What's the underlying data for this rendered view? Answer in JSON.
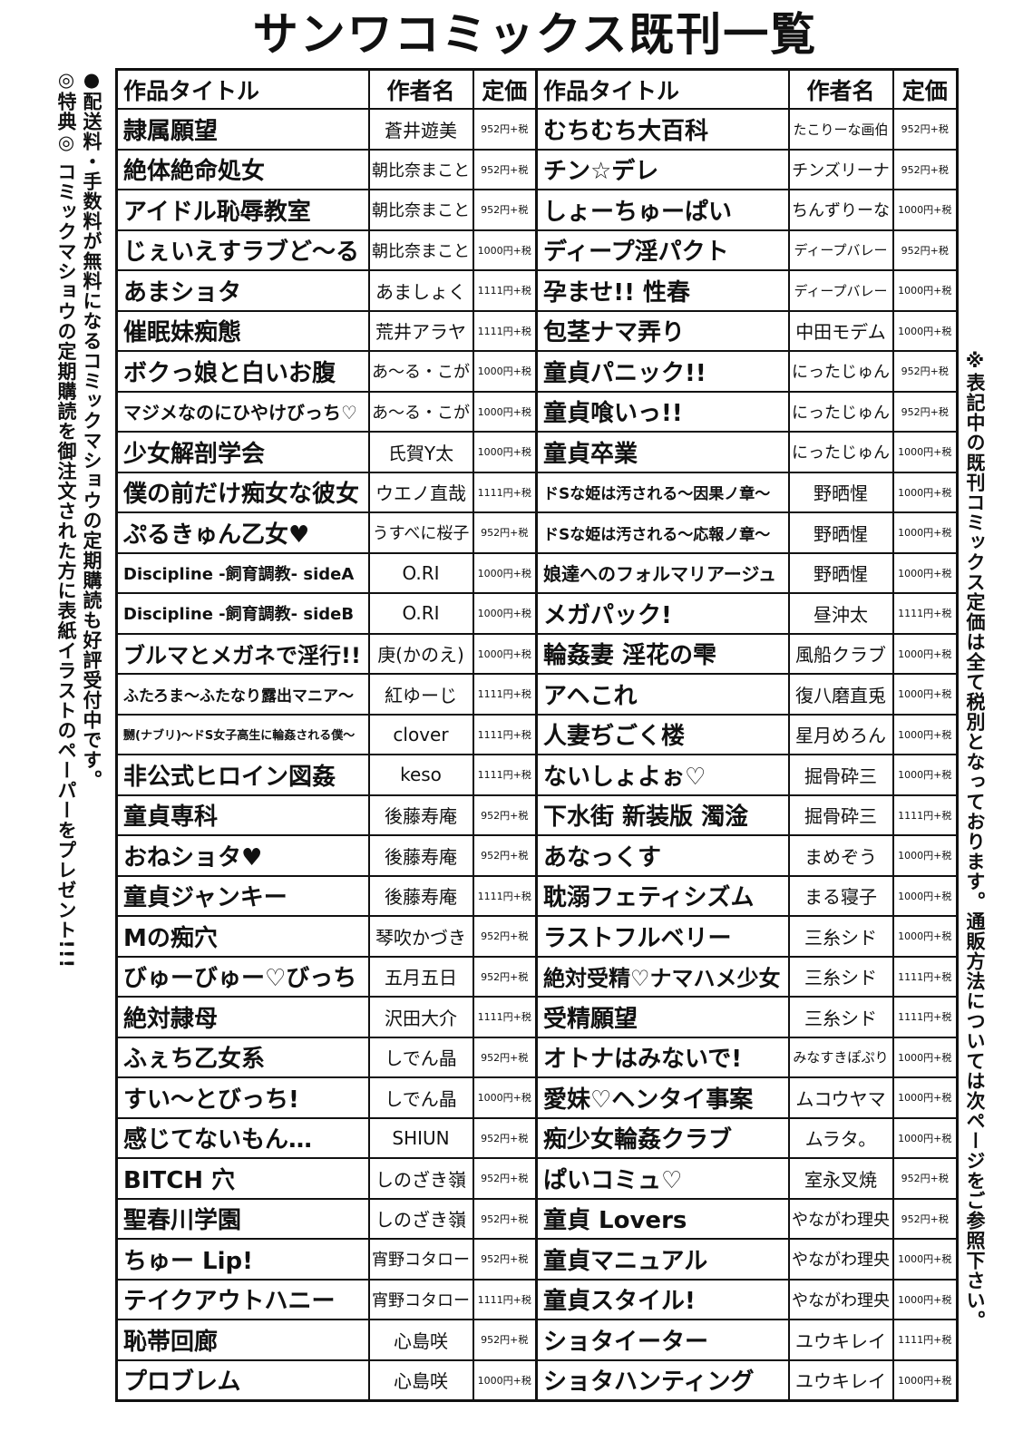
{
  "header": {
    "title": "サンワコミックス既刊一覧"
  },
  "notes": {
    "left1": "●配送料・手数料が無料になるコミックマショウの定期購読も好評受付中です。",
    "left2": "◎特典◎ コミックマショウの定期購読を御注文された方に表紙イラストのペーパーをプレゼント!!!",
    "right": "※表記中の既刊コミックス定価は全て税別となっております。通販方法については次ページをご参照下さい。"
  },
  "table": {
    "header": [
      "作品タイトル",
      "作者名",
      "定価",
      "作品タイトル",
      "作者名",
      "定価"
    ],
    "rows": [
      [
        "隷属願望",
        "蒼井遊美",
        "952円+税",
        "むちむち大百科",
        "たこりーな画伯",
        "952円+税"
      ],
      [
        "絶体絶命処女",
        "朝比奈まこと",
        "952円+税",
        "チン☆デレ",
        "チンズリーナ",
        "952円+税"
      ],
      [
        "アイドル恥辱教室",
        "朝比奈まこと",
        "952円+税",
        "しょーちゅーぱい",
        "ちんずりーな",
        "1000円+税"
      ],
      [
        "じぇいえすラブど〜る",
        "朝比奈まこと",
        "1000円+税",
        "ディープ淫パクト",
        "ディープバレー",
        "952円+税"
      ],
      [
        "あまショタ",
        "あましょく",
        "1111円+税",
        "孕ませ!! 性春",
        "ディープバレー",
        "1000円+税"
      ],
      [
        "催眠妹痴態",
        "荒井アラヤ",
        "1111円+税",
        "包茎ナマ弄り",
        "中田モデム",
        "1000円+税"
      ],
      [
        "ボクっ娘と白いお腹",
        "あ〜る・こが",
        "1000円+税",
        "童貞パニック!!",
        "にったじゅん",
        "952円+税"
      ],
      [
        "マジメなのにひやけびっち♡",
        "あ〜る・こが",
        "1000円+税",
        "童貞喰いっ!!",
        "にったじゅん",
        "952円+税"
      ],
      [
        "少女解剖学会",
        "氏賀Y太",
        "1000円+税",
        "童貞卒業",
        "にったじゅん",
        "1000円+税"
      ],
      [
        "僕の前だけ痴女な彼女",
        "ウエノ直哉",
        "1111円+税",
        "ドSな姫は汚される〜因果ノ章〜",
        "野晒惺",
        "1000円+税"
      ],
      [
        "ぷるきゅん乙女♥",
        "うすべに桜子",
        "952円+税",
        "ドSな姫は汚される〜応報ノ章〜",
        "野晒惺",
        "1000円+税"
      ],
      [
        "Discipline -飼育調教- sideA",
        "O.RI",
        "1000円+税",
        "娘達へのフォルマリアージュ",
        "野晒惺",
        "1000円+税"
      ],
      [
        "Discipline -飼育調教- sideB",
        "O.RI",
        "1000円+税",
        "メガパック!",
        "昼沖太",
        "1111円+税"
      ],
      [
        "ブルマとメガネで淫行!!",
        "庚(かのえ)",
        "1000円+税",
        "輪姦妻 淫花の雫",
        "風船クラブ",
        "1000円+税"
      ],
      [
        "ふたろま〜ふたなり露出マニア〜",
        "紅ゆーじ",
        "1111円+税",
        "アヘこれ",
        "復八磨直兎",
        "1000円+税"
      ],
      [
        "嬲(ナブリ)〜ドS女子高生に輪姦される僕〜",
        "clover",
        "1111円+税",
        "人妻ぢごく楼",
        "星月めろん",
        "1000円+税"
      ],
      [
        "非公式ヒロイン図姦",
        "keso",
        "1111円+税",
        "ないしょよぉ♡",
        "掘骨砕三",
        "1000円+税"
      ],
      [
        "童貞専科",
        "後藤寿庵",
        "952円+税",
        "下水街 新装版 濁淦",
        "掘骨砕三",
        "1111円+税"
      ],
      [
        "おねショタ♥",
        "後藤寿庵",
        "952円+税",
        "あなっくす",
        "まめぞう",
        "1000円+税"
      ],
      [
        "童貞ジャンキー",
        "後藤寿庵",
        "1111円+税",
        "耽溺フェティシズム",
        "まる寝子",
        "1000円+税"
      ],
      [
        "Mの痴穴",
        "琴吹かづき",
        "952円+税",
        "ラストフルベリー",
        "三糸シド",
        "1000円+税"
      ],
      [
        "びゅーびゅー♡びっち",
        "五月五日",
        "952円+税",
        "絶対受精♡ナマハメ少女",
        "三糸シド",
        "1111円+税"
      ],
      [
        "絶対隷母",
        "沢田大介",
        "1111円+税",
        "受精願望",
        "三糸シド",
        "1111円+税"
      ],
      [
        "ふぇち乙女系",
        "しでん晶",
        "952円+税",
        "オトナはみないで!",
        "みなすきぽぷり",
        "1000円+税"
      ],
      [
        "すい〜とびっち!",
        "しでん晶",
        "1000円+税",
        "愛妹♡ヘンタイ事案",
        "ムコウヤマ",
        "1000円+税"
      ],
      [
        "感じてないもん…",
        "SHIUN",
        "952円+税",
        "痴少女輪姦クラブ",
        "ムラタ。",
        "1000円+税"
      ],
      [
        "BITCH 穴",
        "しのざき嶺",
        "952円+税",
        "ぱいコミュ♡",
        "室永叉焼",
        "952円+税"
      ],
      [
        "聖春川学園",
        "しのざき嶺",
        "952円+税",
        "童貞 Lovers",
        "やながわ理央",
        "952円+税"
      ],
      [
        "ちゅー Lip!",
        "宵野コタロー",
        "952円+税",
        "童貞マニュアル",
        "やながわ理央",
        "1000円+税"
      ],
      [
        "テイクアウトハニー",
        "宵野コタロー",
        "1111円+税",
        "童貞スタイル!",
        "やながわ理央",
        "1000円+税"
      ],
      [
        "恥帯回廊",
        "心島咲",
        "952円+税",
        "ショタイーター",
        "ユウキレイ",
        "1111円+税"
      ],
      [
        "プロブレム",
        "心島咲",
        "1000円+税",
        "ショタハンティング",
        "ユウキレイ",
        "1000円+税"
      ]
    ]
  }
}
